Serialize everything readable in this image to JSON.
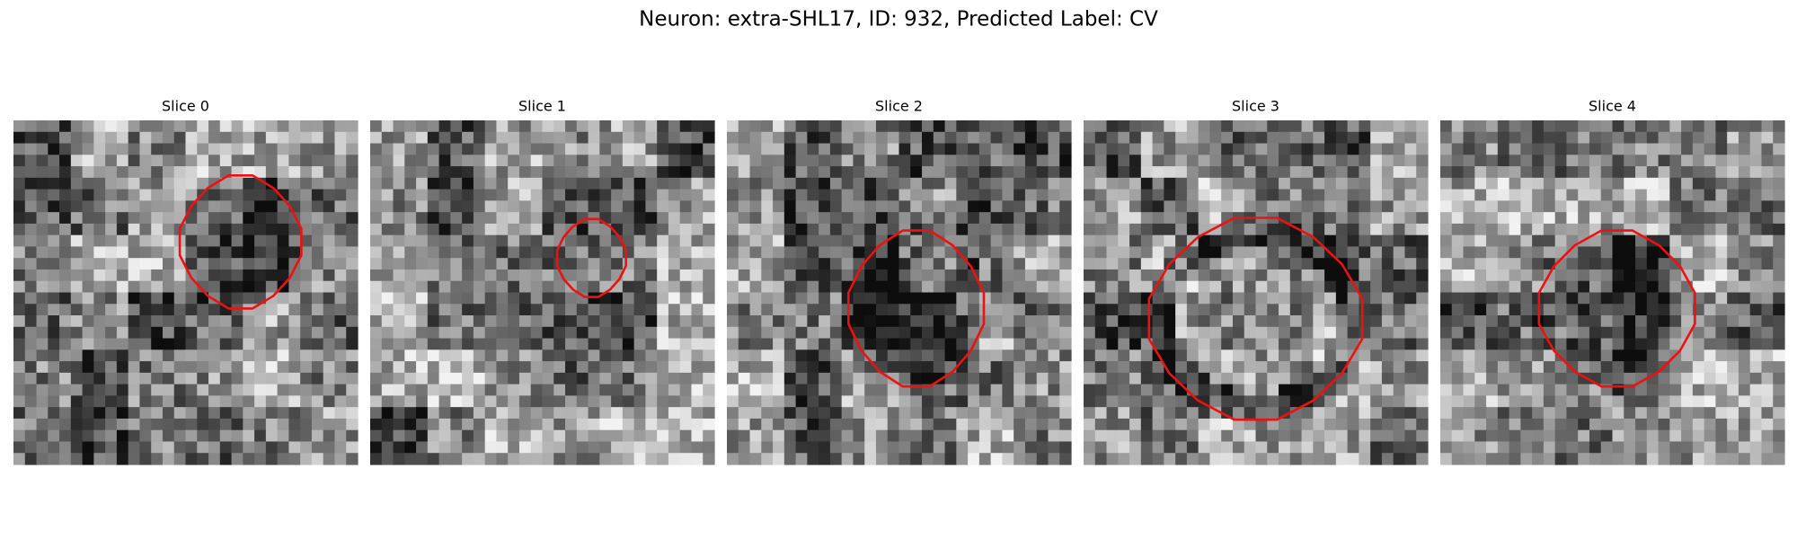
{
  "title": "Neuron: extra-SHL17, ID: 932, Predicted Label: CV",
  "panels": [
    {
      "title": "Slice 0"
    },
    {
      "title": "Slice 1"
    },
    {
      "title": "Slice 2"
    },
    {
      "title": "Slice 3"
    },
    {
      "title": "Slice 4"
    }
  ]
}
